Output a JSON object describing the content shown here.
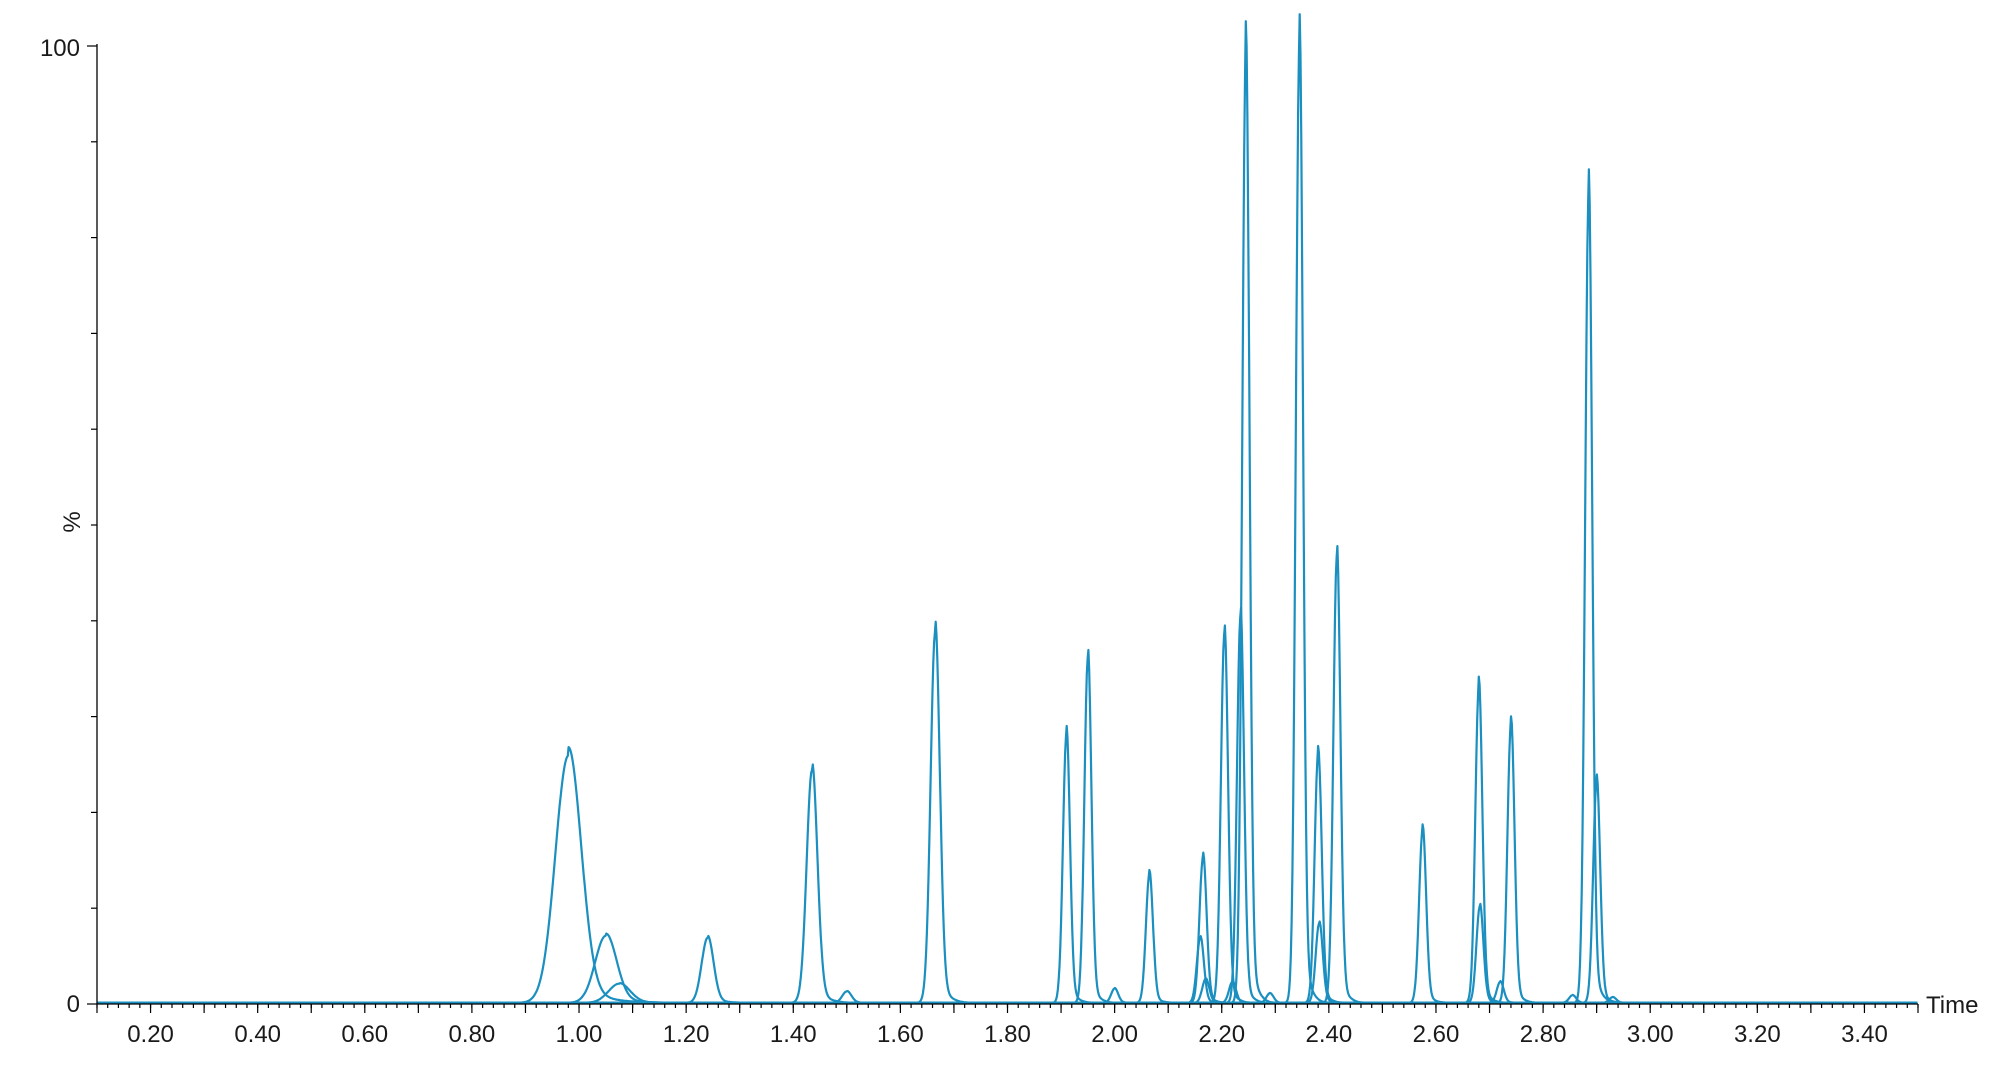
{
  "chart_data": {
    "type": "line",
    "title": "",
    "xlabel": "Time",
    "ylabel": "%",
    "xlim": [
      0.1,
      3.5
    ],
    "ylim": [
      0,
      100
    ],
    "x_ticks": [
      "0.20",
      "0.40",
      "0.60",
      "0.80",
      "1.00",
      "1.20",
      "1.40",
      "1.60",
      "1.80",
      "2.00",
      "2.20",
      "2.40",
      "2.60",
      "2.80",
      "3.00",
      "3.20",
      "3.40"
    ],
    "y_ticks": [
      "0",
      "100"
    ],
    "y_mid_label": "%",
    "grid": false,
    "line_color": "#1a8fc0",
    "peaks": [
      {
        "rt": 0.98,
        "height": 25.8
      },
      {
        "rt": 1.05,
        "height": 7.0
      },
      {
        "rt": 1.075,
        "height": 2.0
      },
      {
        "rt": 1.24,
        "height": 6.8
      },
      {
        "rt": 1.435,
        "height": 24.3
      },
      {
        "rt": 1.5,
        "height": 1.2
      },
      {
        "rt": 1.665,
        "height": 38.7
      },
      {
        "rt": 1.91,
        "height": 28.0
      },
      {
        "rt": 1.95,
        "height": 36.0
      },
      {
        "rt": 2.0,
        "height": 1.5
      },
      {
        "rt": 2.065,
        "height": 13.4
      },
      {
        "rt": 2.16,
        "height": 6.8
      },
      {
        "rt": 2.165,
        "height": 15.2
      },
      {
        "rt": 2.17,
        "height": 2.5
      },
      {
        "rt": 2.205,
        "height": 38.5
      },
      {
        "rt": 2.22,
        "height": 2.2
      },
      {
        "rt": 2.235,
        "height": 40.3
      },
      {
        "rt": 2.245,
        "height": 99.0
      },
      {
        "rt": 2.29,
        "height": 1.0
      },
      {
        "rt": 2.345,
        "height": 100.0
      },
      {
        "rt": 2.38,
        "height": 25.9
      },
      {
        "rt": 2.382,
        "height": 8.3
      },
      {
        "rt": 2.415,
        "height": 46.6
      },
      {
        "rt": 2.575,
        "height": 18.0
      },
      {
        "rt": 2.68,
        "height": 32.9
      },
      {
        "rt": 2.682,
        "height": 10.1
      },
      {
        "rt": 2.72,
        "height": 2.2
      },
      {
        "rt": 2.74,
        "height": 28.9
      },
      {
        "rt": 2.855,
        "height": 0.8
      },
      {
        "rt": 2.885,
        "height": 84.3
      },
      {
        "rt": 2.9,
        "height": 23.1
      },
      {
        "rt": 2.93,
        "height": 0.6
      }
    ]
  }
}
